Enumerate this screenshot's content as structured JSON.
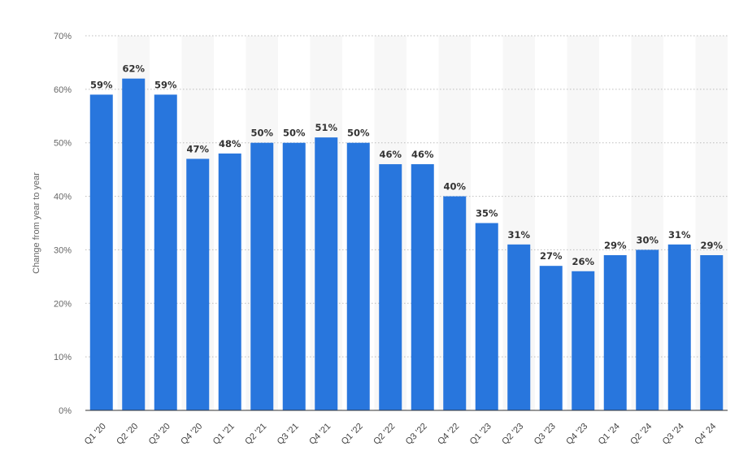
{
  "chart_data": {
    "type": "bar",
    "title": "",
    "xlabel": "",
    "ylabel": "Change from year to year",
    "ylim": [
      0,
      70
    ],
    "yticks": [
      0,
      10,
      20,
      30,
      40,
      50,
      60,
      70
    ],
    "ytick_suffix": "%",
    "grid": true,
    "legend": "none",
    "bar_color": "#2876dd",
    "band_color": "#f7f7f7",
    "categories": [
      "Q1 '20",
      "Q2 '20",
      "Q3 '20",
      "Q4 '20",
      "Q1 '21",
      "Q2 '21",
      "Q3 '21",
      "Q4 '21",
      "Q1 '22",
      "Q2 '22",
      "Q3 '22",
      "Q4 '22",
      "Q1 '23",
      "Q2 '23",
      "Q3 '23",
      "Q4 '23",
      "Q1 '24",
      "Q2 '24",
      "Q3 '24",
      "Q4' 24"
    ],
    "values": [
      59,
      62,
      59,
      47,
      48,
      50,
      50,
      51,
      50,
      46,
      46,
      40,
      35,
      31,
      27,
      26,
      29,
      30,
      31,
      29
    ],
    "data_labels": [
      "59%",
      "62%",
      "59%",
      "47%",
      "48%",
      "50%",
      "50%",
      "51%",
      "50%",
      "46%",
      "46%",
      "40%",
      "35%",
      "31%",
      "27%",
      "26%",
      "29%",
      "30%",
      "31%",
      "29%"
    ]
  }
}
